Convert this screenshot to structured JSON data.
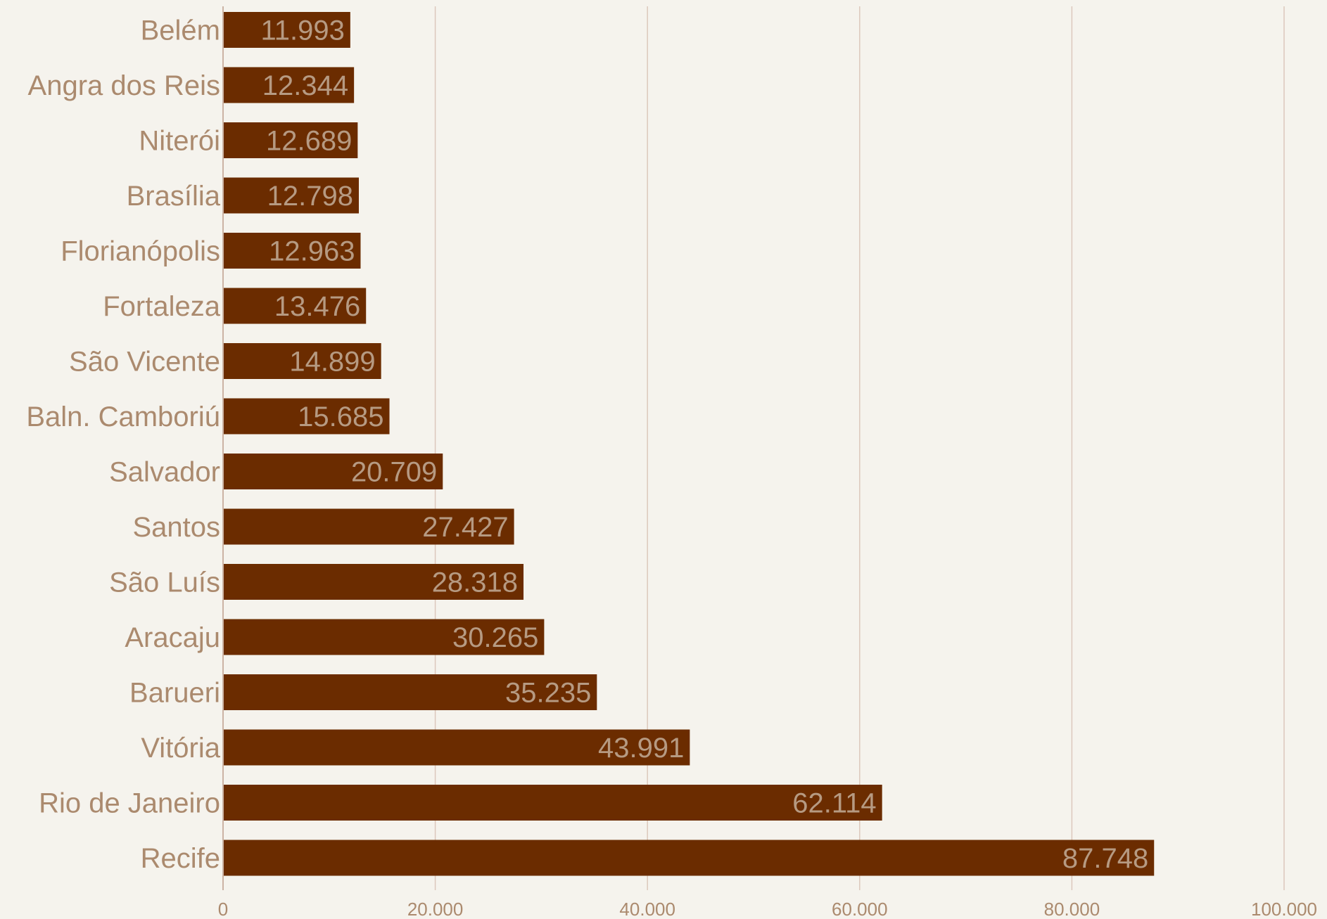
{
  "chart_data": {
    "type": "bar",
    "orientation": "horizontal",
    "categories": [
      "Belém",
      "Angra dos Reis",
      "Niterói",
      "Brasília",
      "Florianópolis",
      "Fortaleza",
      "São Vicente",
      "Baln. Camboriú",
      "Salvador",
      "Santos",
      "São Luís",
      "Aracaju",
      "Barueri",
      "Vitória",
      "Rio de Janeiro",
      "Recife"
    ],
    "values": [
      11993,
      12344,
      12689,
      12798,
      12963,
      13476,
      14899,
      15685,
      20709,
      27427,
      28318,
      30265,
      35235,
      43991,
      62114,
      87748
    ],
    "value_labels": [
      "11.993",
      "12.344",
      "12.689",
      "12.798",
      "12.963",
      "13.476",
      "14.899",
      "15.685",
      "20.709",
      "27.427",
      "28.318",
      "30.265",
      "35.235",
      "43.991",
      "62.114",
      "87.748"
    ],
    "xlim": [
      0,
      100000
    ],
    "x_ticks": [
      0,
      20000,
      40000,
      60000,
      80000,
      100000
    ],
    "x_tick_labels": [
      "0",
      "20.000",
      "40.000",
      "60.000",
      "80.000",
      "100.000"
    ],
    "title": "",
    "xlabel": "",
    "ylabel": "",
    "grid": "vertical",
    "legend": "none",
    "colors": {
      "background": "#f5f3ed",
      "bar": "#6b2c00",
      "gridline": "#dcc8bc",
      "axis": "#cbb3a4",
      "category_text": "#ab8a6e",
      "value_text": "#b69a82",
      "tick_text": "#ab8a6e"
    }
  }
}
